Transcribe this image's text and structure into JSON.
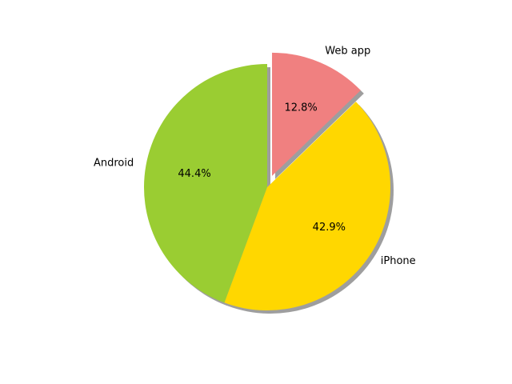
{
  "chart_data": {
    "type": "pie",
    "title": "",
    "categories": [
      "Android",
      "iPhone",
      "Web app"
    ],
    "values": [
      44.4,
      42.9,
      12.8
    ],
    "percent_labels": [
      "44.4%",
      "42.9%",
      "12.8%"
    ],
    "colors": [
      "#9acd32",
      "#ffd700",
      "#f08080"
    ],
    "exploded": [
      false,
      false,
      true
    ],
    "shadow": true,
    "start_angle": 90,
    "direction": "counterclockwise"
  }
}
